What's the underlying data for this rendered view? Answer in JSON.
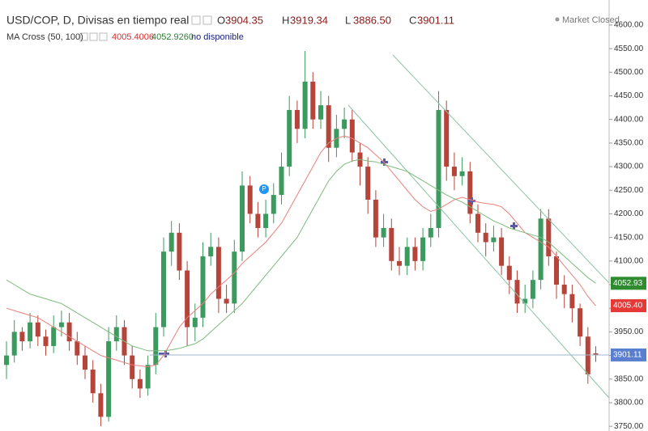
{
  "chart_data": {
    "type": "candlestick",
    "title": "USD/COP, D, Divisas en tiempo real",
    "status": "Market Closed",
    "categories": [
      null,
      null,
      null,
      null,
      null,
      null,
      null,
      null,
      null,
      null,
      null,
      null,
      null,
      null,
      null,
      null,
      null,
      null,
      null,
      null,
      null,
      null,
      null,
      null,
      null,
      null,
      null,
      null,
      null,
      null,
      null,
      null,
      null,
      null,
      null,
      null,
      null,
      null,
      null,
      null,
      null,
      null,
      null,
      null,
      null,
      null,
      null,
      null,
      null,
      null,
      null,
      null,
      null,
      null,
      null,
      null,
      null,
      null,
      null,
      null,
      null,
      null,
      null,
      null,
      null,
      null,
      null,
      null,
      null,
      null,
      null,
      null,
      null,
      null,
      null,
      null
    ],
    "open": [
      3880,
      3900,
      3950,
      3930,
      3970,
      3940,
      3920,
      3960,
      3970,
      3930,
      3900,
      3870,
      3820,
      3770,
      3930,
      3960,
      3900,
      3850,
      3830,
      3880,
      3960,
      4120,
      4160,
      4080,
      3960,
      3980,
      4110,
      4130,
      4020,
      4010,
      4120,
      4260,
      4200,
      4170,
      4200,
      4240,
      4300,
      4420,
      4380,
      4480,
      4400,
      4430,
      4340,
      4380,
      4400,
      4330,
      4300,
      4230,
      4150,
      4170,
      4100,
      4090,
      4130,
      4100,
      4150,
      4170,
      4420,
      4300,
      4280,
      4290,
      4200,
      4160,
      4140,
      4150,
      4090,
      4060,
      4010,
      4020,
      4060,
      4190,
      4110,
      4050,
      4030,
      4000,
      3940,
      3904.35
    ],
    "high": [
      3930,
      3975,
      3960,
      3990,
      3985,
      3955,
      3985,
      3995,
      3990,
      3950,
      3920,
      3890,
      3840,
      3960,
      3985,
      3975,
      3920,
      3870,
      3900,
      3990,
      4150,
      4185,
      4180,
      4100,
      4010,
      4140,
      4160,
      4150,
      4050,
      4145,
      4290,
      4280,
      4225,
      4230,
      4265,
      4330,
      4450,
      4440,
      4545,
      4500,
      4460,
      4450,
      4410,
      4425,
      4420,
      4350,
      4320,
      4250,
      4200,
      4190,
      4130,
      4150,
      4150,
      4170,
      4200,
      4460,
      4440,
      4330,
      4320,
      4310,
      4220,
      4180,
      4175,
      4170,
      4110,
      4080,
      4050,
      4080,
      4210,
      4210,
      4120,
      4070,
      4050,
      4010,
      3960,
      3919.34
    ],
    "low": [
      3850,
      3885,
      3910,
      3915,
      3920,
      3900,
      3905,
      3940,
      3910,
      3880,
      3850,
      3800,
      3750,
      3760,
      3910,
      3880,
      3830,
      3810,
      3815,
      3860,
      3940,
      4090,
      4060,
      3920,
      3930,
      3960,
      4090,
      3990,
      3990,
      3990,
      4100,
      4180,
      4150,
      4150,
      4180,
      4220,
      4280,
      4350,
      4360,
      4380,
      4380,
      4310,
      4320,
      4360,
      4310,
      4260,
      4200,
      4130,
      4130,
      4080,
      4070,
      4070,
      4080,
      4080,
      4130,
      4150,
      4270,
      4250,
      4260,
      4180,
      4140,
      4110,
      4120,
      4070,
      4030,
      3990,
      3990,
      4000,
      4040,
      4090,
      4020,
      4000,
      3970,
      3920,
      3840,
      3886.5
    ],
    "close": [
      3900,
      3950,
      3930,
      3970,
      3940,
      3920,
      3960,
      3970,
      3930,
      3900,
      3870,
      3820,
      3770,
      3930,
      3960,
      3900,
      3850,
      3830,
      3880,
      3960,
      4120,
      4160,
      4080,
      3960,
      3980,
      4110,
      4130,
      4020,
      4010,
      4120,
      4260,
      4200,
      4170,
      4200,
      4240,
      4300,
      4420,
      4380,
      4480,
      4400,
      4430,
      4340,
      4380,
      4400,
      4330,
      4300,
      4230,
      4150,
      4170,
      4100,
      4090,
      4130,
      4100,
      4150,
      4170,
      4420,
      4300,
      4280,
      4290,
      4200,
      4160,
      4140,
      4150,
      4090,
      4060,
      4010,
      4020,
      4060,
      4190,
      4110,
      4050,
      4030,
      4000,
      3940,
      3860,
      3901.11
    ],
    "up_color": "#3c9a5f",
    "down_color": "#b5443b",
    "ohlc": [
      {
        "letter": "O",
        "label": "3904.35"
      },
      {
        "letter": "H",
        "label": "3919.34"
      },
      {
        "letter": "L",
        "label": "3886.50"
      },
      {
        "letter": "C",
        "label": "3901.11"
      }
    ],
    "indicator": {
      "name": "MA Cross (50, 100)",
      "status": "no disponible"
    },
    "series": [
      {
        "color": "#e8807a",
        "legend_label": "4005.4006",
        "axis_label": "4005.40",
        "values": [
          4000,
          3995,
          3990,
          3985,
          3980,
          3970,
          3960,
          3950,
          3940,
          3930,
          3920,
          3910,
          3900,
          3895,
          3890,
          3885,
          3880,
          3878,
          3876,
          3880,
          3900,
          3930,
          3960,
          3980,
          3995,
          4010,
          4030,
          4045,
          4060,
          4075,
          4095,
          4110,
          4125,
          4140,
          4160,
          4180,
          4210,
          4240,
          4270,
          4300,
          4330,
          4350,
          4360,
          4365,
          4360,
          4350,
          4340,
          4325,
          4310,
          4290,
          4270,
          4250,
          4230,
          4215,
          4205,
          4210,
          4220,
          4230,
          4235,
          4230,
          4225,
          4222,
          4220,
          4215,
          4200,
          4180,
          4160,
          4150,
          4140,
          4130,
          4110,
          4090,
          4070,
          4050,
          4025,
          4005.4006
        ]
      },
      {
        "color": "#7dbb7d",
        "legend_label": "4052.9260",
        "axis_label": "4052.93",
        "values": [
          4060,
          4050,
          4040,
          4030,
          4025,
          4020,
          4015,
          4010,
          4000,
          3990,
          3980,
          3970,
          3960,
          3950,
          3940,
          3930,
          3920,
          3915,
          3910,
          3910,
          3910,
          3912,
          3915,
          3920,
          3925,
          3935,
          3950,
          3965,
          3980,
          3995,
          4010,
          4030,
          4050,
          4070,
          4090,
          4110,
          4130,
          4150,
          4180,
          4210,
          4240,
          4270,
          4290,
          4305,
          4312,
          4315,
          4312,
          4310,
          4305,
          4300,
          4295,
          4290,
          4280,
          4270,
          4260,
          4250,
          4240,
          4232,
          4225,
          4215,
          4205,
          4195,
          4185,
          4178,
          4170,
          4165,
          4160,
          4155,
          4150,
          4140,
          4125,
          4110,
          4095,
          4080,
          4065,
          4052.926
        ]
      }
    ],
    "ylim": [
      3740,
      4653
    ],
    "yticks": [
      {
        "value": 3750,
        "label": "3750.00"
      },
      {
        "value": 3800,
        "label": "3800.00"
      },
      {
        "value": 3850,
        "label": "3850.00"
      },
      {
        "value": 3900,
        "label": "3900.00"
      },
      {
        "value": 3950,
        "label": "3950.00"
      },
      {
        "value": 4000,
        "label": "4000.00"
      },
      {
        "value": 4050,
        "label": "4050.00"
      },
      {
        "value": 4100,
        "label": "4100.00"
      },
      {
        "value": 4150,
        "label": "4150.00"
      },
      {
        "value": 4200,
        "label": "4200.00"
      },
      {
        "value": 4250,
        "label": "4250.00"
      },
      {
        "value": 4300,
        "label": "4300.00"
      },
      {
        "value": 4350,
        "label": "4350.00"
      },
      {
        "value": 4400,
        "label": "4400.00"
      },
      {
        "value": 4450,
        "label": "4450.00"
      },
      {
        "value": 4500,
        "label": "4500.00"
      },
      {
        "value": 4550,
        "label": "4550.00"
      },
      {
        "value": 4600,
        "label": "4600.00"
      }
    ]
  }
}
